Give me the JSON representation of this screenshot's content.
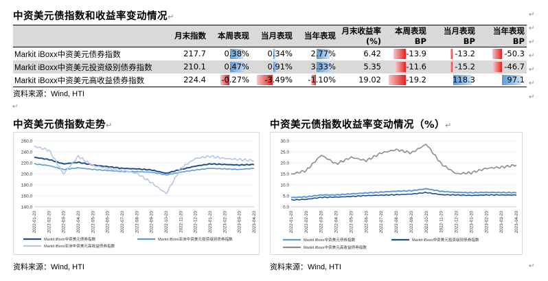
{
  "table_title": "中资美元债指数和收益率变动情况",
  "table": {
    "headers": [
      "",
      "月末指数",
      "本周表现",
      "当月表现",
      "当年表现",
      "月末收益率(%)",
      "本周表现 BP",
      "当月表现 BP",
      "当年表现 BP"
    ],
    "rows": [
      {
        "name_latin": "Markit iBoxx",
        "name_cn": "中资美元债券指数",
        "cells": [
          "217.7",
          "0.38%",
          "0.34%",
          "2.77%",
          "6.42",
          "-13.9",
          "-13.2",
          "-50.3"
        ],
        "nums": [
          217.7,
          0.38,
          0.34,
          2.77,
          6.42,
          -13.9,
          -13.2,
          -50.3
        ]
      },
      {
        "name_latin": "Markit iBoxx",
        "name_cn": "中资美元投资级别债券指数",
        "cells": [
          "210.1",
          "0.47%",
          "0.91%",
          "3.33%",
          "5.35",
          "-11.6",
          "-15.2",
          "-46.7"
        ],
        "nums": [
          210.1,
          0.47,
          0.91,
          3.33,
          5.35,
          -11.6,
          -15.2,
          -46.7
        ]
      },
      {
        "name_latin": "Markit iBoxx",
        "name_cn": "中资美元高收益债券指数",
        "cells": [
          "224.4",
          "-0.27%",
          "-3.49%",
          "-1.10%",
          "19.02",
          "-19.2",
          "118.3",
          "97.1"
        ],
        "nums": [
          224.4,
          -0.27,
          -3.49,
          -1.1,
          19.02,
          -19.2,
          118.3,
          97.1
        ]
      }
    ]
  },
  "source_label": "资料来源：",
  "source_value": "Wind, HTI",
  "chart1_title": "中资美元债指数走势",
  "chart2_title": "中资美元债指数收益率变动情况（%）",
  "colors": {
    "series_dark": "#1f4e8c",
    "series_mid": "#5b9bd5",
    "series_light": "#b4c7e7",
    "series_gray": "#8c8c8c",
    "bar_pos": "#5b9bd5",
    "bar_neg": "#e02020"
  },
  "chart_data": [
    {
      "type": "line",
      "title": "中资美元债指数走势",
      "x": [
        "2022-01-20",
        "2022-02-20",
        "2022-03-20",
        "2022-04-20",
        "2022-05-20",
        "2022-06-20",
        "2022-07-20",
        "2022-08-20",
        "2022-09-20",
        "2022-10-20",
        "2022-11-20",
        "2022-12-20",
        "2023-01-20",
        "2023-02-20",
        "2023-03-20",
        "2023-04-20"
      ],
      "ylim": [
        140,
        260
      ],
      "yticks": [
        "140.0",
        "160.0",
        "180.0",
        "200.0",
        "220.0",
        "240.0",
        "260.0"
      ],
      "series": [
        {
          "name": "Markit iBoxx中资美元债券指数",
          "values": [
            230,
            226,
            218,
            221,
            216,
            213,
            210,
            209,
            207,
            201,
            208,
            214,
            218,
            217,
            216,
            217
          ]
        },
        {
          "name": "Markit iBoxx亚洲中资美元投资级别债券指数",
          "values": [
            218,
            215,
            208,
            211,
            208,
            206,
            204,
            204,
            203,
            198,
            203,
            207,
            210,
            209,
            208,
            210
          ]
        },
        {
          "name": "Markit iBoxx亚洲中资美元高收益债券指数",
          "values": [
            250,
            243,
            200,
            232,
            215,
            210,
            206,
            201,
            184,
            164,
            210,
            228,
            232,
            228,
            226,
            224
          ]
        }
      ]
    },
    {
      "type": "line",
      "title": "中资美元债指数收益率变动情况（%）",
      "x": [
        "2022-01-20",
        "2022-02-20",
        "2022-03-20",
        "2022-04-20",
        "2022-05-20",
        "2022-06-20",
        "2022-07-20",
        "2022-08-20",
        "2022-09-20",
        "2022-10-20",
        "2022-11-20",
        "2022-12-20",
        "2023-01-20",
        "2023-02-20",
        "2023-03-20",
        "2023-04-20"
      ],
      "ylim": [
        0,
        30
      ],
      "yticks": [
        "0.0",
        "5.0",
        "10.0",
        "15.0",
        "20.0",
        "25.0",
        "30.0"
      ],
      "series": [
        {
          "name": "Markit iBoxx中资美元债券指数",
          "values": [
            4.2,
            4.5,
            5.4,
            5.4,
            5.9,
            6.3,
            6.7,
            7.1,
            7.3,
            8.2,
            7.0,
            6.6,
            6.4,
            6.6,
            6.5,
            6.4
          ]
        },
        {
          "name": "Markit iBoxx中资美元投资级别债券指数",
          "values": [
            3.1,
            3.4,
            4.3,
            4.4,
            4.7,
            5.1,
            5.3,
            5.5,
            5.8,
            6.5,
            5.5,
            5.4,
            5.2,
            5.4,
            5.4,
            5.35
          ]
        },
        {
          "name": "Markit iBoxx中资美元高收益债券指数",
          "values": [
            14.8,
            16.5,
            23.5,
            19.5,
            22.5,
            21.0,
            24.5,
            26.0,
            24.5,
            28.5,
            19.5,
            15.0,
            15.5,
            17.5,
            18.0,
            19.0
          ]
        }
      ]
    }
  ]
}
